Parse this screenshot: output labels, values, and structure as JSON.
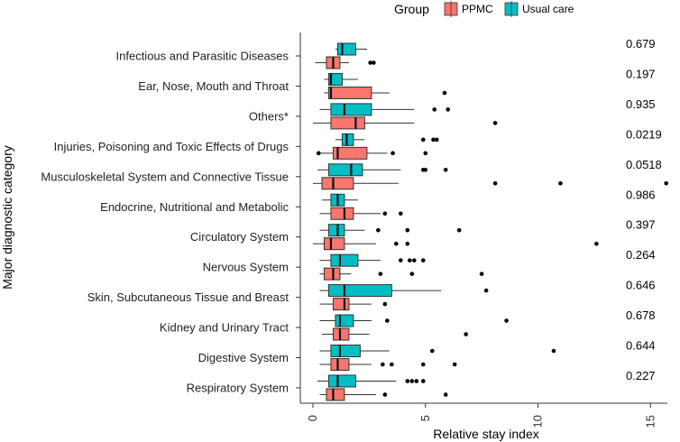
{
  "chart_data": {
    "type": "boxplot",
    "orientation": "horizontal",
    "title": "",
    "xlabel": "Relative stay index",
    "ylabel": "Major diagnostic category",
    "xlim": [
      -0.6,
      16
    ],
    "xticks": [
      0,
      5,
      10,
      15
    ],
    "xtick_labels": [
      "0",
      "5",
      "10",
      "15"
    ],
    "legend": {
      "title": "Group",
      "position": "top",
      "entries": [
        {
          "name": "PPMC",
          "color": "#F8766D"
        },
        {
          "name": "Usual care",
          "color": "#00BFC4"
        }
      ]
    },
    "categories": [
      {
        "name": "Infectious and Parasitic Diseases",
        "p": "0.679",
        "usual": {
          "whisker_low": 1.0,
          "q1": 1.1,
          "median": 1.3,
          "q3": 1.9,
          "whisker_high": 2.4,
          "outliers": []
        },
        "ppmc": {
          "whisker_low": 0.1,
          "q1": 0.6,
          "median": 0.9,
          "q3": 1.2,
          "whisker_high": 1.6,
          "outliers": [
            2.55,
            2.7
          ]
        }
      },
      {
        "name": "Ear, Nose, Mouth and Throat",
        "p": "0.197",
        "usual": {
          "whisker_low": 0.5,
          "q1": 0.7,
          "median": 0.8,
          "q3": 1.3,
          "whisker_high": 2.0,
          "outliers": []
        },
        "ppmc": {
          "whisker_low": 0.5,
          "q1": 0.7,
          "median": 0.8,
          "q3": 2.6,
          "whisker_high": 3.4,
          "outliers": [
            5.85
          ]
        }
      },
      {
        "name": "Others*",
        "p": "0.935",
        "usual": {
          "whisker_low": 0.3,
          "q1": 0.8,
          "median": 1.4,
          "q3": 2.6,
          "whisker_high": 4.5,
          "outliers": [
            5.4,
            6.0
          ]
        },
        "ppmc": {
          "whisker_low": 0.0,
          "q1": 0.8,
          "median": 1.9,
          "q3": 2.3,
          "whisker_high": 4.5,
          "outliers": [
            8.1
          ]
        }
      },
      {
        "name": "Injuries, Poisoning and Toxic Effects of Drugs",
        "p": "0.0219",
        "usual": {
          "whisker_low": 1.0,
          "q1": 1.3,
          "median": 1.5,
          "q3": 1.8,
          "whisker_high": 2.3,
          "outliers": [
            4.9,
            5.35,
            5.5
          ]
        },
        "ppmc": {
          "whisker_low": 0.3,
          "q1": 0.9,
          "median": 1.1,
          "q3": 2.4,
          "whisker_high": 3.3,
          "outliers": [
            0.25,
            3.55,
            5.0
          ]
        }
      },
      {
        "name": "Musculoskeletal System and Connective Tissue",
        "p": "0.0518",
        "usual": {
          "whisker_low": 0.2,
          "q1": 0.7,
          "median": 1.7,
          "q3": 2.2,
          "whisker_high": 3.9,
          "outliers": [
            4.9,
            5.0,
            5.9
          ]
        },
        "ppmc": {
          "whisker_low": 0.0,
          "q1": 0.4,
          "median": 0.9,
          "q3": 1.8,
          "whisker_high": 3.8,
          "outliers": [
            8.1,
            11.0,
            15.7
          ]
        }
      },
      {
        "name": "Endocrine, Nutritional and Metabolic",
        "p": "0.986",
        "usual": {
          "whisker_low": 0.4,
          "q1": 0.8,
          "median": 1.1,
          "q3": 1.4,
          "whisker_high": 2.0,
          "outliers": []
        },
        "ppmc": {
          "whisker_low": 0.3,
          "q1": 0.8,
          "median": 1.4,
          "q3": 1.8,
          "whisker_high": 3.0,
          "outliers": [
            3.2,
            3.9
          ]
        }
      },
      {
        "name": "Circulatory System",
        "p": "0.397",
        "usual": {
          "whisker_low": 0.3,
          "q1": 0.7,
          "median": 1.1,
          "q3": 1.4,
          "whisker_high": 2.3,
          "outliers": [
            2.9,
            4.2,
            6.5
          ]
        },
        "ppmc": {
          "whisker_low": 0.0,
          "q1": 0.5,
          "median": 0.8,
          "q3": 1.4,
          "whisker_high": 2.8,
          "outliers": [
            3.7,
            4.2,
            12.6
          ]
        }
      },
      {
        "name": "Nervous System",
        "p": "0.264",
        "usual": {
          "whisker_low": 0.3,
          "q1": 0.8,
          "median": 1.2,
          "q3": 2.0,
          "whisker_high": 3.0,
          "outliers": [
            3.9,
            4.3,
            4.5,
            4.9
          ]
        },
        "ppmc": {
          "whisker_low": 0.3,
          "q1": 0.5,
          "median": 0.9,
          "q3": 1.2,
          "whisker_high": 1.7,
          "outliers": [
            3.0,
            4.4,
            7.5
          ]
        }
      },
      {
        "name": "Skin, Subcutaneous Tissue and Breast",
        "p": "0.646",
        "usual": {
          "whisker_low": 0.3,
          "q1": 0.7,
          "median": 1.4,
          "q3": 3.5,
          "whisker_high": 5.7,
          "outliers": [
            7.7
          ]
        },
        "ppmc": {
          "whisker_low": 0.3,
          "q1": 0.9,
          "median": 1.4,
          "q3": 1.6,
          "whisker_high": 2.6,
          "outliers": [
            3.2
          ]
        }
      },
      {
        "name": "Kidney and Urinary Tract",
        "p": "0.678",
        "usual": {
          "whisker_low": 0.3,
          "q1": 1.0,
          "median": 1.2,
          "q3": 1.8,
          "whisker_high": 2.6,
          "outliers": [
            3.3,
            8.6
          ]
        },
        "ppmc": {
          "whisker_low": 0.4,
          "q1": 0.9,
          "median": 1.2,
          "q3": 1.6,
          "whisker_high": 2.5,
          "outliers": [
            6.8
          ]
        }
      },
      {
        "name": "Digestive System",
        "p": "0.644",
        "usual": {
          "whisker_low": 0.3,
          "q1": 0.8,
          "median": 1.2,
          "q3": 2.1,
          "whisker_high": 3.4,
          "outliers": [
            5.3,
            10.7
          ]
        },
        "ppmc": {
          "whisker_low": 0.3,
          "q1": 0.8,
          "median": 1.1,
          "q3": 1.6,
          "whisker_high": 2.6,
          "outliers": [
            3.1,
            3.5,
            4.9,
            6.3
          ]
        }
      },
      {
        "name": "Respiratory System",
        "p": "0.227",
        "usual": {
          "whisker_low": 0.2,
          "q1": 0.7,
          "median": 1.1,
          "q3": 1.9,
          "whisker_high": 3.7,
          "outliers": [
            4.2,
            4.4,
            4.6,
            4.9
          ]
        },
        "ppmc": {
          "whisker_low": 0.3,
          "q1": 0.6,
          "median": 0.9,
          "q3": 1.4,
          "whisker_high": 2.8,
          "outliers": [
            3.2,
            5.9
          ]
        }
      }
    ]
  }
}
